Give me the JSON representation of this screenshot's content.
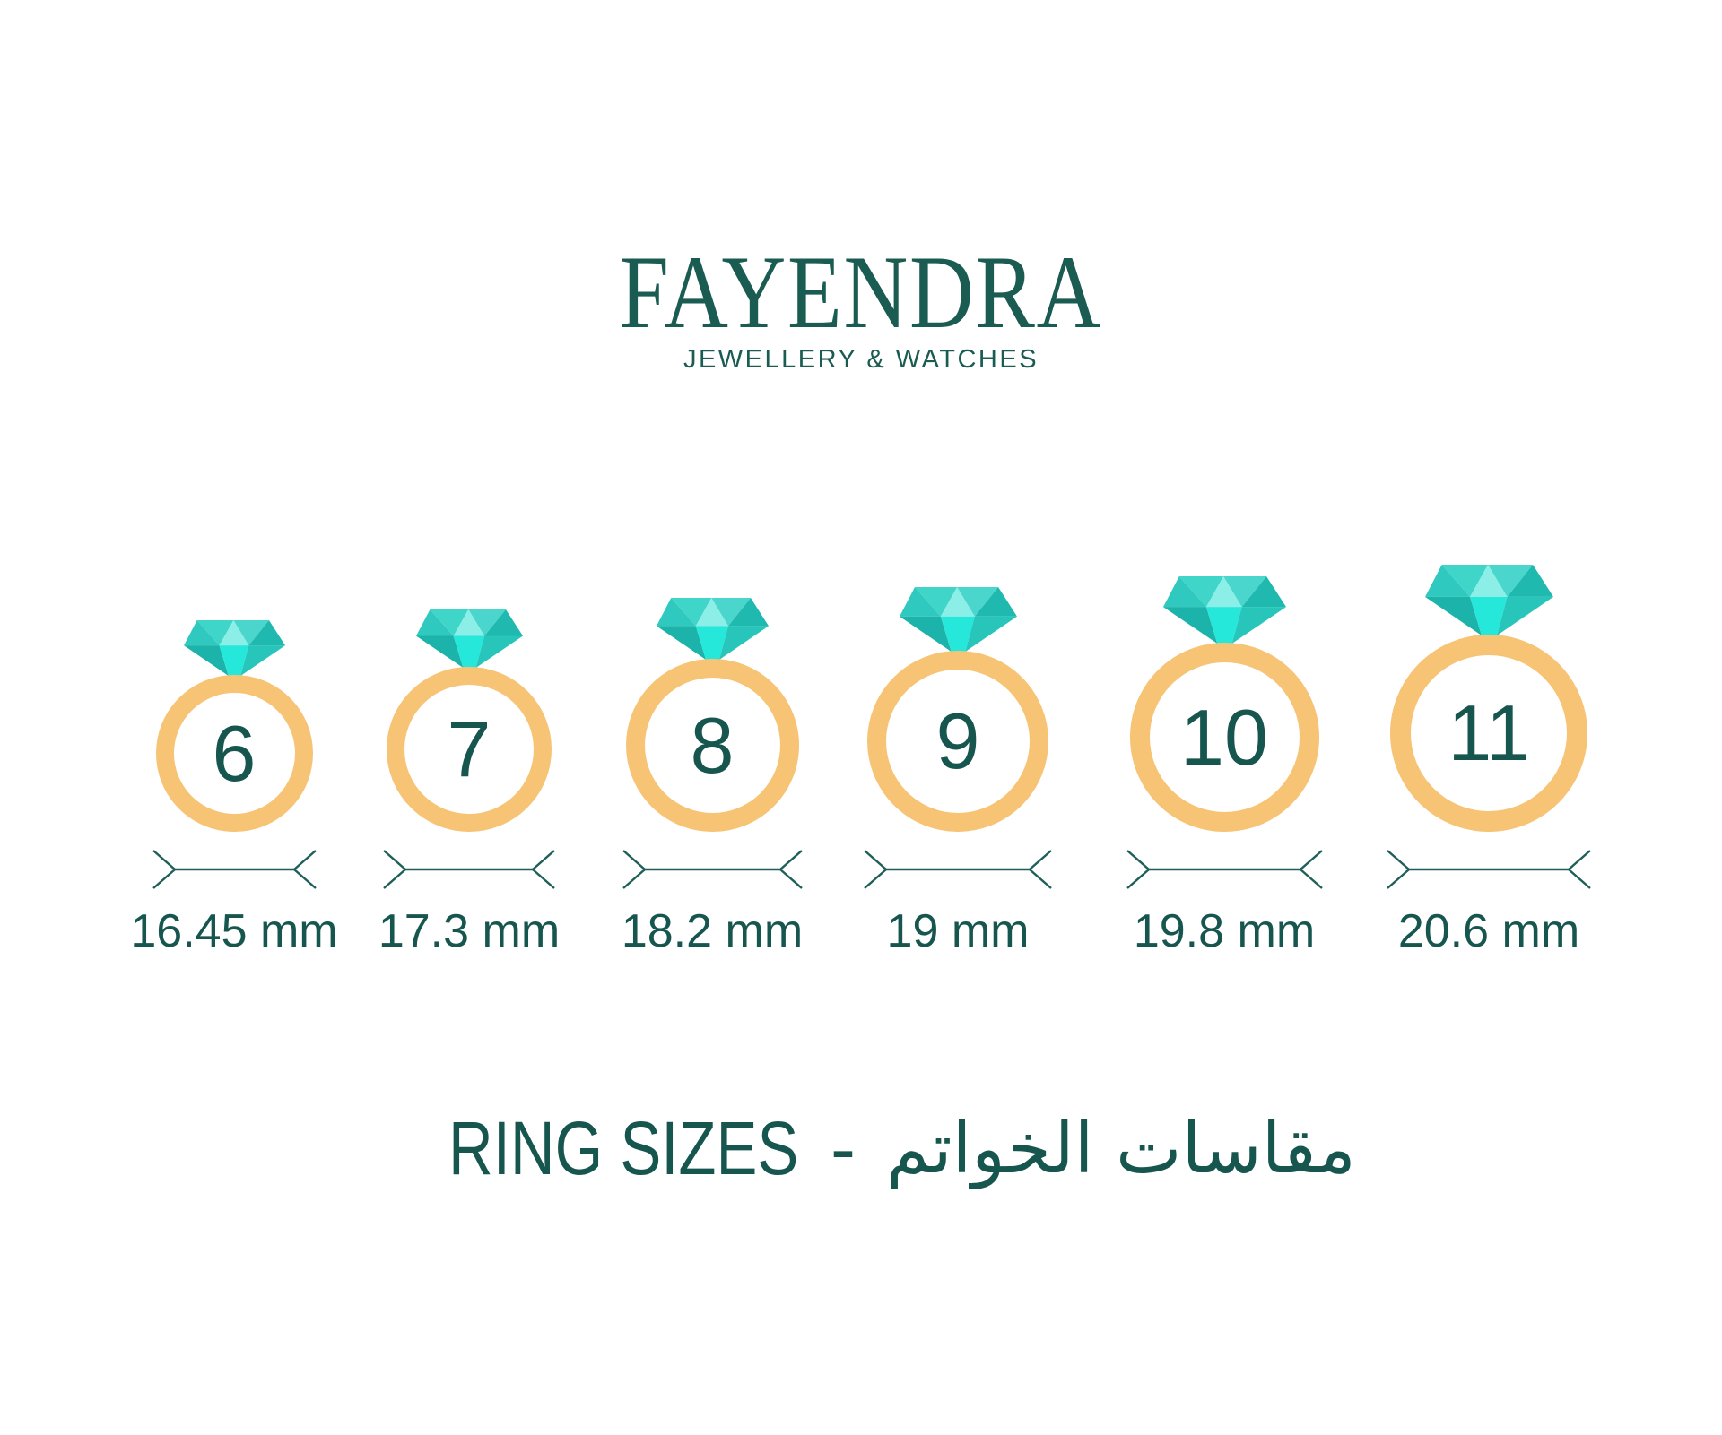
{
  "brand": {
    "name": "FAYENDRA",
    "tagline": "JEWELLERY & WATCHES"
  },
  "title": {
    "english": "RING SIZES",
    "separator": "-",
    "arabic": "مقاسات الخواتم"
  },
  "rings": [
    {
      "size": "6",
      "diameter": "16.45 mm"
    },
    {
      "size": "7",
      "diameter": "17.3 mm"
    },
    {
      "size": "8",
      "diameter": "18.2 mm"
    },
    {
      "size": "9",
      "diameter": "19 mm"
    },
    {
      "size": "10",
      "diameter": "19.8 mm"
    },
    {
      "size": "11",
      "diameter": "20.6 mm"
    }
  ],
  "colors": {
    "background": "#FFFFFF",
    "text_teal": "#17564F",
    "brand_teal": "#1A5B52",
    "band_gold": "#F7C374",
    "dimension_stroke": "#1E5F5A",
    "diamond": {
      "crown_left_outer": "#2FC9BF",
      "crown_left_inner": "#3FD5C9",
      "crown_center": "#8BEFE8",
      "crown_right_inner": "#4AD6CC",
      "crown_right_outer": "#1FB9AF",
      "pavilion_left": "#1BB3AA",
      "pavilion_center": "#25E8DA",
      "pavilion_right": "#27C5BA"
    }
  }
}
